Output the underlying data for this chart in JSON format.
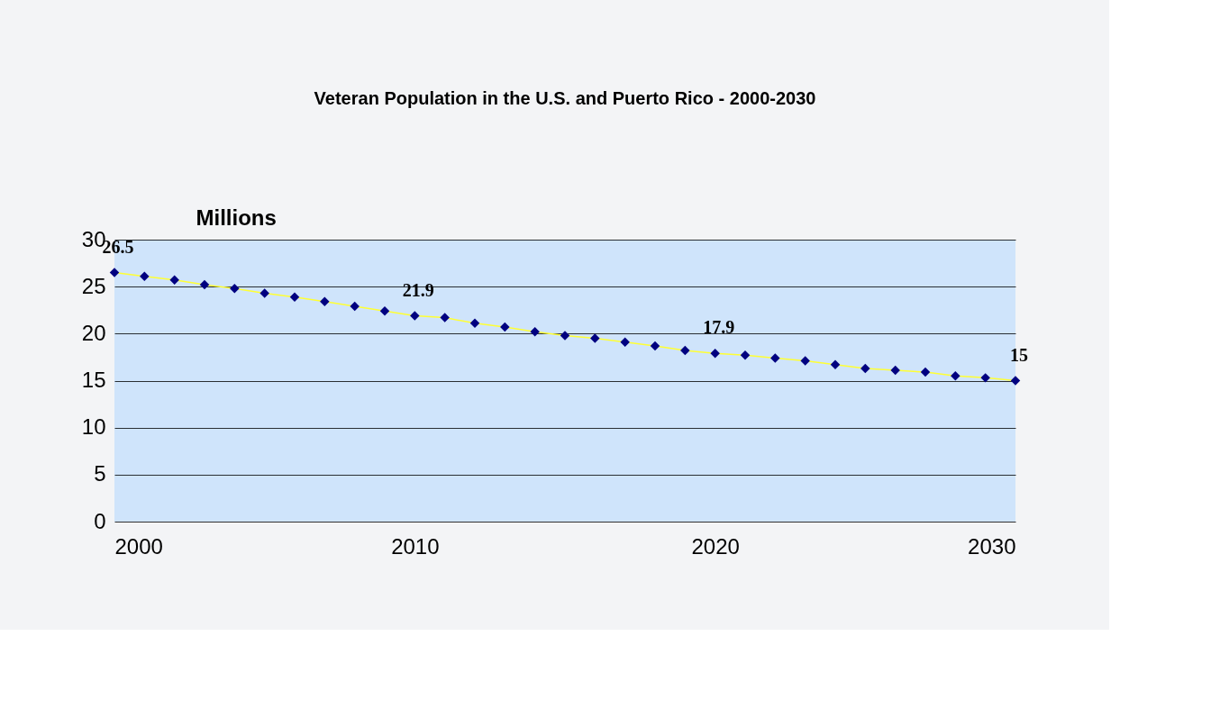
{
  "chart_data": {
    "type": "line",
    "title": "Veteran Population in the U.S. and Puerto Rico - 2000-2030",
    "ylabel": "Millions",
    "x": [
      2000,
      2001,
      2002,
      2003,
      2004,
      2005,
      2006,
      2007,
      2008,
      2009,
      2010,
      2011,
      2012,
      2013,
      2014,
      2015,
      2016,
      2017,
      2018,
      2019,
      2020,
      2021,
      2022,
      2023,
      2024,
      2025,
      2026,
      2027,
      2028,
      2029,
      2030
    ],
    "series": [
      {
        "color": "#000080",
        "values": [
          26.5,
          26.1,
          25.7,
          25.2,
          24.8,
          24.3,
          23.9,
          23.4,
          22.9,
          22.4,
          21.9,
          21.7,
          21.1,
          20.7,
          20.2,
          19.8,
          19.5,
          19.1,
          18.7,
          18.2,
          17.9,
          17.7,
          17.4,
          17.1,
          16.7,
          16.3,
          16.1,
          15.9,
          15.5,
          15.3,
          15.0
        ],
        "value_labels": [
          "26.5",
          null,
          null,
          null,
          null,
          null,
          null,
          null,
          null,
          null,
          "21.9",
          null,
          null,
          null,
          null,
          null,
          null,
          null,
          null,
          null,
          "17.9",
          null,
          null,
          null,
          null,
          null,
          null,
          null,
          null,
          null,
          "15"
        ]
      }
    ],
    "xlim": [
      2000,
      2030
    ],
    "xticks": [
      2000,
      2010,
      2020,
      2030
    ],
    "ylim": [
      0,
      30
    ],
    "yticks": [
      0,
      5,
      10,
      15,
      20,
      25,
      30
    ],
    "grid": "y",
    "marker": "diamond",
    "line_style": "solid"
  }
}
